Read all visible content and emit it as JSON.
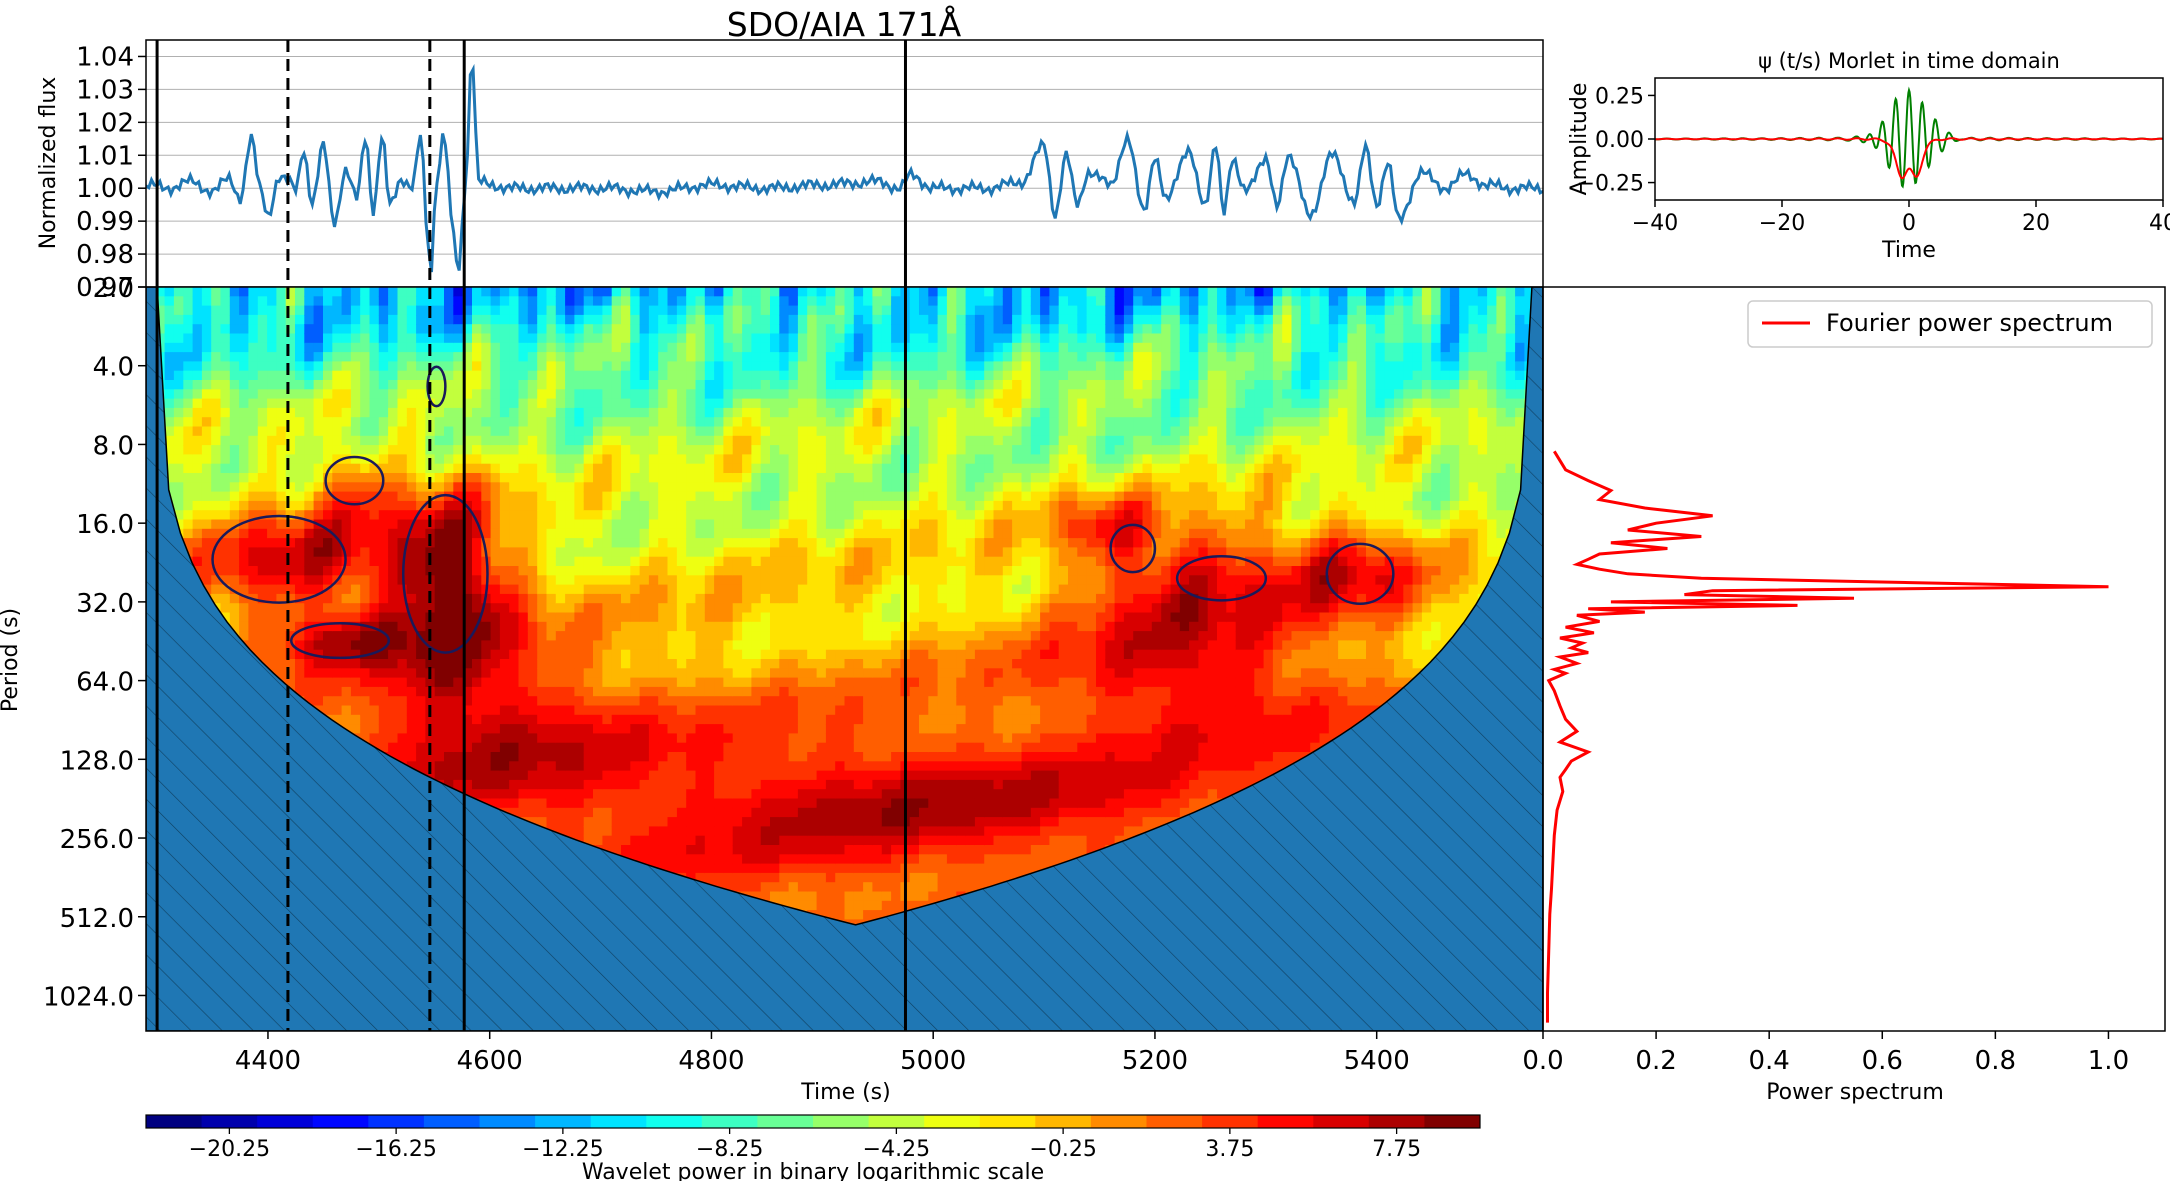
{
  "chart_data": [
    {
      "type": "line",
      "panel": "light-curve",
      "title": "SDO/AIA 171Å",
      "ylabel": "Normalized flux",
      "xlabel": "",
      "xlim": [
        4290,
        5550
      ],
      "ylim": [
        0.97,
        1.045
      ],
      "yticks": [
        0.97,
        0.98,
        0.99,
        1.0,
        1.01,
        1.02,
        1.03,
        1.04
      ],
      "ytick_labels": [
        "0.97",
        "0.98",
        "0.99",
        "1.00",
        "1.01",
        "1.02",
        "1.03",
        "1.04"
      ],
      "grid": "horizontal",
      "series_color": "#1f77b4",
      "series": [
        {
          "x": [
            4290,
            4310,
            4330,
            4350,
            4365,
            4375,
            4385,
            4393,
            4400,
            4410,
            4418,
            4425,
            4432,
            4440,
            4450,
            4460,
            4470,
            4480,
            4488,
            4495,
            4503,
            4510,
            4520,
            4530,
            4538,
            4543,
            4547,
            4550,
            4553,
            4558,
            4562,
            4567,
            4572,
            4578,
            4584,
            4590,
            4600,
            4620,
            4650,
            4700,
            4750,
            4800,
            4850,
            4900,
            4950,
            4970,
            4980,
            5000,
            5050,
            5080,
            5100,
            5110,
            5120,
            5130,
            5140,
            5160,
            5175,
            5190,
            5200,
            5210,
            5230,
            5245,
            5255,
            5262,
            5270,
            5280,
            5300,
            5310,
            5320,
            5340,
            5360,
            5380,
            5390,
            5400,
            5410,
            5420,
            5440,
            5460,
            5480,
            5500,
            5520,
            5550
          ],
          "y": [
            1.001,
            1.0,
            1.002,
            0.999,
            1.003,
            0.997,
            1.015,
            1.0,
            0.992,
            1.003,
            1.002,
            1.0,
            1.012,
            0.995,
            1.013,
            0.99,
            1.005,
            0.997,
            1.016,
            0.993,
            1.015,
            0.995,
            1.003,
            1.0,
            1.016,
            0.99,
            0.973,
            0.995,
            1.002,
            1.018,
            1.005,
            0.985,
            0.975,
            1.001,
            1.04,
            1.002,
            1.001,
            1.0,
            1.0,
            1.0,
            0.999,
            1.001,
            1.0,
            1.001,
            1.002,
            1.0,
            1.004,
            1.0,
            1.0,
            1.002,
            1.013,
            0.992,
            1.01,
            0.995,
            1.005,
            1.001,
            1.015,
            0.993,
            1.01,
            0.996,
            1.012,
            0.994,
            1.014,
            0.993,
            1.008,
            1.0,
            1.008,
            0.995,
            1.01,
            0.992,
            1.01,
            0.996,
            1.012,
            0.995,
            1.008,
            0.99,
            1.005,
            1.0,
            1.004,
            1.001,
            1.0,
            1.0
          ]
        }
      ]
    },
    {
      "type": "line",
      "panel": "morlet",
      "title": "ψ (t/s) Morlet in time domain",
      "xlabel": "Time",
      "ylabel": "Amplitude",
      "xlim": [
        -40,
        40
      ],
      "ylim": [
        -0.35,
        0.35
      ],
      "xticks": [
        -40,
        -20,
        0,
        20,
        40
      ],
      "xtick_labels": [
        "−40",
        "−20",
        "0",
        "20",
        "40"
      ],
      "yticks": [
        -0.25,
        0.0,
        0.25
      ],
      "ytick_labels": [
        "−0.25",
        "0.00",
        "0.25"
      ],
      "series": [
        {
          "color": "#008000",
          "frequency": 1.0,
          "amplitude": 0.28,
          "decay": 3.0
        },
        {
          "color": "#ff0000",
          "frequency": 0.55,
          "amplitude": 0.25,
          "decay": 1.6
        }
      ]
    },
    {
      "type": "heatmap",
      "panel": "wavelet",
      "xlabel": "Time (s)",
      "ylabel": "Period (s)",
      "xlim": [
        4290,
        5550
      ],
      "yscale": "log2",
      "ylim": [
        2.0,
        1400
      ],
      "xticks": [
        4400,
        4600,
        4800,
        5000,
        5200,
        5400
      ],
      "xtick_labels": [
        "4400",
        "4600",
        "4800",
        "5000",
        "5200",
        "5400"
      ],
      "yticks": [
        2,
        4,
        8,
        16,
        32,
        64,
        128,
        256,
        512,
        1024
      ],
      "ytick_labels": [
        "2.0",
        "4.0",
        "8.0",
        "16.0",
        "32.0",
        "64.0",
        "128.0",
        "256.0",
        "512.0",
        "1024.0"
      ],
      "coi_color": "#1f77b4",
      "coi_peak": {
        "x": 4930,
        "period": 550
      },
      "markers": [
        {
          "x": 4300,
          "style": "solid"
        },
        {
          "x": 4418,
          "style": "dashed"
        },
        {
          "x": 4546,
          "style": "dashed"
        },
        {
          "x": 4577,
          "style": "solid"
        },
        {
          "x": 4975,
          "style": "solid"
        }
      ],
      "power_blobs": [
        {
          "x": 4430,
          "period": 22,
          "sx": 70,
          "sy": 0.55,
          "amp": 8.0
        },
        {
          "x": 4565,
          "period": 26,
          "sx": 40,
          "sy": 0.9,
          "amp": 11.0
        },
        {
          "x": 4475,
          "period": 11,
          "sx": 28,
          "sy": 0.35,
          "amp": 5.0
        },
        {
          "x": 4465,
          "period": 45,
          "sx": 40,
          "sy": 0.25,
          "amp": 6.0
        },
        {
          "x": 4600,
          "period": 90,
          "sx": 90,
          "sy": 0.7,
          "amp": 5.0
        },
        {
          "x": 5230,
          "period": 24,
          "sx": 70,
          "sy": 0.55,
          "amp": 7.5
        },
        {
          "x": 5380,
          "period": 24,
          "sx": 45,
          "sy": 0.45,
          "amp": 7.0
        },
        {
          "x": 5230,
          "period": 60,
          "sx": 90,
          "sy": 0.6,
          "amp": 6.0
        },
        {
          "x": 5150,
          "period": 16,
          "sx": 30,
          "sy": 0.3,
          "amp": 5.0
        },
        {
          "x": 4960,
          "period": 180,
          "sx": 180,
          "sy": 0.6,
          "amp": 4.0
        }
      ]
    },
    {
      "type": "line",
      "panel": "fourier",
      "xlabel": "Power spectrum",
      "ylabel": "",
      "xlim": [
        0.0,
        1.1
      ],
      "xticks": [
        0.0,
        0.2,
        0.4,
        0.6,
        0.8,
        1.0
      ],
      "xtick_labels": [
        "0.0",
        "0.2",
        "0.4",
        "0.6",
        "0.8",
        "1.0"
      ],
      "yscale": "log2",
      "legend": "top-right",
      "series": [
        {
          "name": "Fourier power spectrum",
          "color": "#ff0000",
          "period": [
            8.5,
            10,
            11,
            12,
            13,
            14,
            15,
            16,
            17,
            18,
            19,
            20,
            21,
            22,
            23,
            24,
            25,
            26,
            27,
            28,
            29,
            30,
            31,
            32,
            33,
            34,
            35,
            36,
            38,
            40,
            42,
            44,
            46,
            48,
            50,
            52,
            55,
            58,
            60,
            64,
            70,
            80,
            90,
            100,
            110,
            120,
            130,
            140,
            150,
            170,
            200,
            250,
            300,
            400,
            500,
            700,
            1000,
            1300
          ],
          "power": [
            0.02,
            0.04,
            0.08,
            0.12,
            0.1,
            0.18,
            0.3,
            0.2,
            0.15,
            0.28,
            0.12,
            0.22,
            0.1,
            0.08,
            0.06,
            0.1,
            0.15,
            0.28,
            0.65,
            1.0,
            0.3,
            0.25,
            0.55,
            0.12,
            0.45,
            0.08,
            0.18,
            0.06,
            0.1,
            0.04,
            0.09,
            0.03,
            0.07,
            0.05,
            0.08,
            0.03,
            0.06,
            0.02,
            0.04,
            0.01,
            0.02,
            0.03,
            0.04,
            0.06,
            0.03,
            0.08,
            0.05,
            0.04,
            0.03,
            0.035,
            0.025,
            0.02,
            0.018,
            0.015,
            0.012,
            0.01,
            0.008,
            0.008
          ]
        }
      ]
    },
    {
      "type": "colorbar",
      "panel": "colorbar",
      "label": "Wavelet power in binary logarithmic scale",
      "vmin": -22.25,
      "vmax": 9.75,
      "levels": 24,
      "ticks": [
        -20.25,
        -16.25,
        -12.25,
        -8.25,
        -4.25,
        -0.25,
        3.75,
        7.75
      ],
      "tick_labels": [
        "−20.25",
        "−16.25",
        "−12.25",
        "−8.25",
        "−4.25",
        "−0.25",
        "3.75",
        "7.75"
      ]
    }
  ]
}
